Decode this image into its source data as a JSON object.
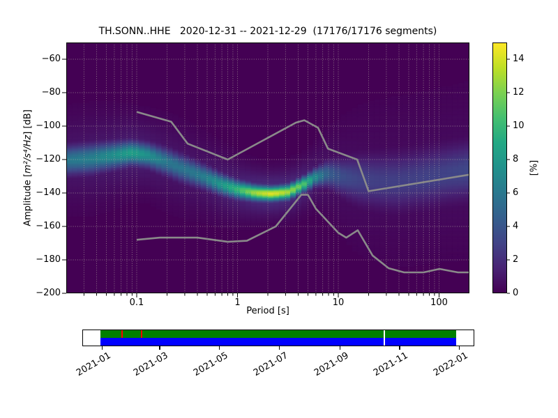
{
  "title": "TH.SONN..HHE   2020-12-31 -- 2021-12-29  (17176/17176 segments)",
  "chart_data": {
    "type": "heatmap",
    "subtype": "probabilistic-power-spectral-density",
    "station": "TH.SONN..HHE",
    "date_range": "2020-12-31 -- 2021-12-29",
    "segments_used": 17176,
    "segments_total": 17176,
    "x_axis": {
      "label": "Period [s]",
      "scale": "log",
      "min": 0.02,
      "max": 200,
      "ticks": [
        {
          "value": 0.1,
          "label": "0.1"
        },
        {
          "value": 1,
          "label": "1"
        },
        {
          "value": 10,
          "label": "10"
        },
        {
          "value": 100,
          "label": "100"
        }
      ]
    },
    "y_axis": {
      "label_prefix": "Amplitude [",
      "label_math": "m²/s⁴/Hz",
      "label_suffix": "] [dB]",
      "min": -200,
      "max": -50,
      "ticks": [
        {
          "value": -60,
          "label": "−60"
        },
        {
          "value": -80,
          "label": "−80"
        },
        {
          "value": -100,
          "label": "−100"
        },
        {
          "value": -120,
          "label": "−120"
        },
        {
          "value": -140,
          "label": "−140"
        },
        {
          "value": -160,
          "label": "−160"
        },
        {
          "value": -180,
          "label": "−180"
        },
        {
          "value": -200,
          "label": "−200"
        }
      ]
    },
    "colorbar": {
      "label": "[%]",
      "min": 0,
      "max": 15,
      "ticks": [
        {
          "value": 0,
          "label": "0"
        },
        {
          "value": 2,
          "label": "2"
        },
        {
          "value": 4,
          "label": "4"
        },
        {
          "value": 6,
          "label": "6"
        },
        {
          "value": 8,
          "label": "8"
        },
        {
          "value": 10,
          "label": "10"
        },
        {
          "value": 12,
          "label": "12"
        },
        {
          "value": 14,
          "label": "14"
        }
      ],
      "colormap": "viridis",
      "colors": [
        [
          0.0,
          "#440154"
        ],
        [
          0.1,
          "#482475"
        ],
        [
          0.2,
          "#414487"
        ],
        [
          0.3,
          "#355f8d"
        ],
        [
          0.4,
          "#2a788e"
        ],
        [
          0.5,
          "#21918c"
        ],
        [
          0.6,
          "#22a884"
        ],
        [
          0.7,
          "#44bf70"
        ],
        [
          0.8,
          "#7ad151"
        ],
        [
          0.9,
          "#bddf26"
        ],
        [
          1.0,
          "#fde725"
        ]
      ]
    },
    "density_ridge": {
      "period_s": [
        0.02,
        0.035,
        0.06,
        0.09,
        0.13,
        0.2,
        0.3,
        0.45,
        0.7,
        1.0,
        1.5,
        2.2,
        3.2,
        4.5,
        6.0,
        8.0,
        11,
        16,
        25,
        40,
        70,
        120,
        200
      ],
      "mode_db": [
        -120.5,
        -119.5,
        -117.5,
        -116.0,
        -117.5,
        -121.5,
        -126.0,
        -130.0,
        -135.0,
        -138.0,
        -140.0,
        -140.5,
        -139.5,
        -135.0,
        -130.5,
        -128.5,
        -130.5,
        -132.0,
        -133.0,
        -133.0,
        -131.0,
        -128.5,
        -126.5
      ],
      "peak_pct": [
        6.0,
        6.5,
        7.5,
        8.5,
        7.5,
        6.0,
        5.8,
        6.3,
        8.0,
        10.0,
        13.0,
        14.5,
        13.0,
        11.0,
        7.0,
        4.5,
        3.5,
        3.0,
        2.8,
        2.8,
        2.9,
        3.0,
        3.2
      ],
      "spread_db": [
        5.5,
        5.5,
        5.0,
        4.5,
        4.5,
        5.0,
        5.0,
        4.5,
        4.0,
        3.5,
        3.0,
        2.8,
        2.9,
        3.0,
        3.5,
        5.0,
        7.0,
        9.0,
        10.0,
        10.5,
        10.5,
        10.5,
        10.5
      ]
    },
    "noise_models": {
      "color": "#8a8a8a",
      "high": [
        [
          0.1,
          -91.5
        ],
        [
          0.22,
          -97.4
        ],
        [
          0.32,
          -110.5
        ],
        [
          0.8,
          -120.0
        ],
        [
          3.8,
          -97.9
        ],
        [
          4.6,
          -96.5
        ],
        [
          6.3,
          -101.0
        ],
        [
          7.9,
          -113.5
        ],
        [
          15.4,
          -120.0
        ],
        [
          20.0,
          -138.9
        ],
        [
          354.8,
          -126.6
        ]
      ],
      "low": [
        [
          0.1,
          -168.0
        ],
        [
          0.17,
          -166.7
        ],
        [
          0.4,
          -166.7
        ],
        [
          0.8,
          -169.2
        ],
        [
          1.24,
          -168.6
        ],
        [
          2.4,
          -160.0
        ],
        [
          4.3,
          -141.1
        ],
        [
          5.0,
          -141.1
        ],
        [
          6.0,
          -149.4
        ],
        [
          10.0,
          -163.8
        ],
        [
          12.0,
          -166.7
        ],
        [
          15.6,
          -162.3
        ],
        [
          21.9,
          -177.4
        ],
        [
          31.6,
          -185.0
        ],
        [
          45.0,
          -187.5
        ],
        [
          70.0,
          -187.5
        ],
        [
          101.0,
          -185.4
        ],
        [
          154.0,
          -187.5
        ],
        [
          328.0,
          -187.5
        ]
      ]
    },
    "grid": {
      "on": true,
      "style": "dotted",
      "color": "#b8b0a4"
    }
  },
  "timeline": {
    "axis_start": "2020-12-13",
    "axis_end": "2022-01-16",
    "coverage": {
      "start": "2020-12-31",
      "end": "2021-12-29",
      "top_color": "#008000",
      "bottom_color": "#0000ff"
    },
    "gap_dates": [
      "2021-10-17"
    ],
    "mark_dates": [
      "2021-01-22",
      "2021-02-11"
    ],
    "mark_color": "#ff0000",
    "tick_labels": [
      "2021-01",
      "2021-03",
      "2021-05",
      "2021-07",
      "2021-09",
      "2021-11",
      "2022-01"
    ]
  }
}
